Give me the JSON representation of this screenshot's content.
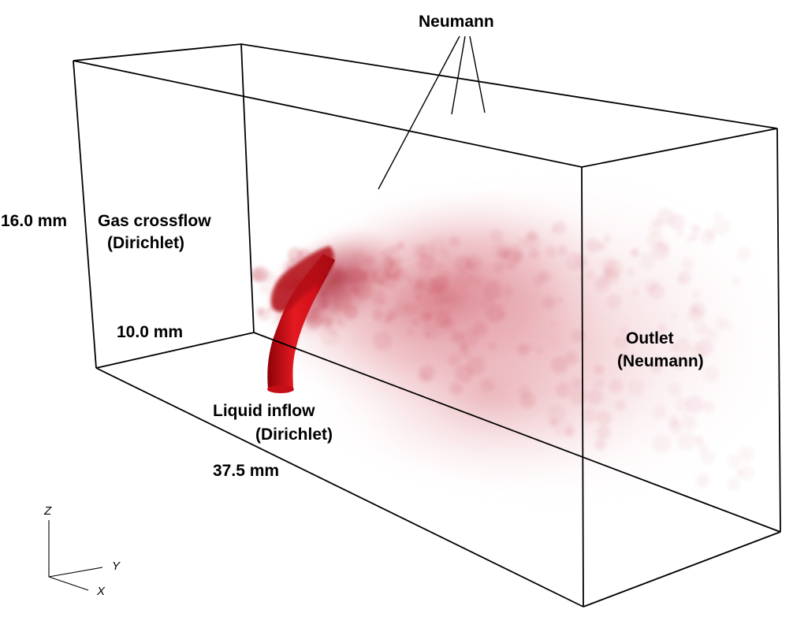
{
  "labels": {
    "top_boundary": "Neumann",
    "height": "16.0 mm",
    "crossflow_line1": "Gas crossflow",
    "crossflow_line2": "(Dirichlet)",
    "width": "10.0 mm",
    "inflow_line1": "Liquid inflow",
    "inflow_line2": "(Dirichlet)",
    "length": "37.5 mm",
    "outlet_line1": "Outlet",
    "outlet_line2": "(Neumann)"
  },
  "axes": {
    "z": "Z",
    "y": "Y",
    "x": "X"
  },
  "colors": {
    "spray_dark": "#b3000b",
    "spray_core": "#e0141e",
    "spray_mist": "#c23a4a",
    "edges": "#000000",
    "text": "#000000"
  }
}
